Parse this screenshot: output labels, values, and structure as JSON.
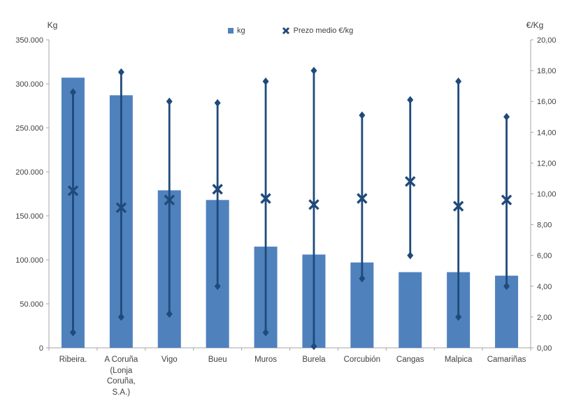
{
  "legend": {
    "items": [
      {
        "label": "kg",
        "marker": "square"
      },
      {
        "label": "Prezo medio €/kg",
        "marker": "x"
      }
    ]
  },
  "axes": {
    "left": {
      "title": "Kg",
      "tick_labels": [
        "350.000",
        "300.000",
        "250.000",
        "200.000",
        "150.000",
        "100.000",
        "50.000",
        "0"
      ]
    },
    "right": {
      "title": "€/Kg",
      "tick_labels": [
        "20,00",
        "18,00",
        "16,00",
        "14,00",
        "12,00",
        "10,00",
        "8,00",
        "6,00",
        "4,00",
        "2,00",
        "0,00"
      ]
    }
  },
  "colors": {
    "bar_fill": "#4f81bd",
    "line_marker": "#1f4a7a",
    "axis_line": "#a6a6a6",
    "text": "#3f3f3f"
  },
  "chart_data": {
    "type": "bar",
    "subtype": "combo: bars (kg, left axis) + high-low range lines with X mean-price markers (€/kg, right axis)",
    "categories": [
      "Ribeira.",
      "A Coruña (Lonja Coruña, S.A.)",
      "Vigo",
      "Bueu",
      "Muros",
      "Burela",
      "Corcubión",
      "Cangas",
      "Malpica",
      "Camariñas"
    ],
    "series": [
      {
        "name": "kg",
        "render": "bar",
        "axis": "left",
        "color": "#4f81bd",
        "values": [
          307000,
          287000,
          179000,
          168000,
          115000,
          106000,
          97000,
          86000,
          86000,
          82000
        ]
      },
      {
        "name": "Prezo medio €/kg",
        "render": "x-marker",
        "axis": "right",
        "color": "#1f4a7a",
        "values": [
          10.2,
          9.1,
          9.6,
          10.3,
          9.7,
          9.3,
          9.7,
          10.8,
          9.2,
          9.6
        ]
      },
      {
        "name": "range-high",
        "render": "hilo-high",
        "axis": "right",
        "color": "#1f4a7a",
        "values": [
          16.6,
          17.9,
          16.0,
          15.9,
          17.3,
          18.0,
          15.1,
          16.1,
          17.3,
          15.0
        ]
      },
      {
        "name": "range-low",
        "render": "hilo-low",
        "axis": "right",
        "color": "#1f4a7a",
        "values": [
          1.0,
          2.0,
          2.2,
          4.0,
          1.0,
          0.1,
          4.5,
          6.0,
          2.0,
          4.0
        ]
      }
    ],
    "left_axis": {
      "label": "Kg",
      "min": 0,
      "max": 350000,
      "step": 50000
    },
    "right_axis": {
      "label": "€/Kg",
      "min": 0,
      "max": 20,
      "step": 2
    },
    "grid": false,
    "legend_position": "top-center"
  }
}
